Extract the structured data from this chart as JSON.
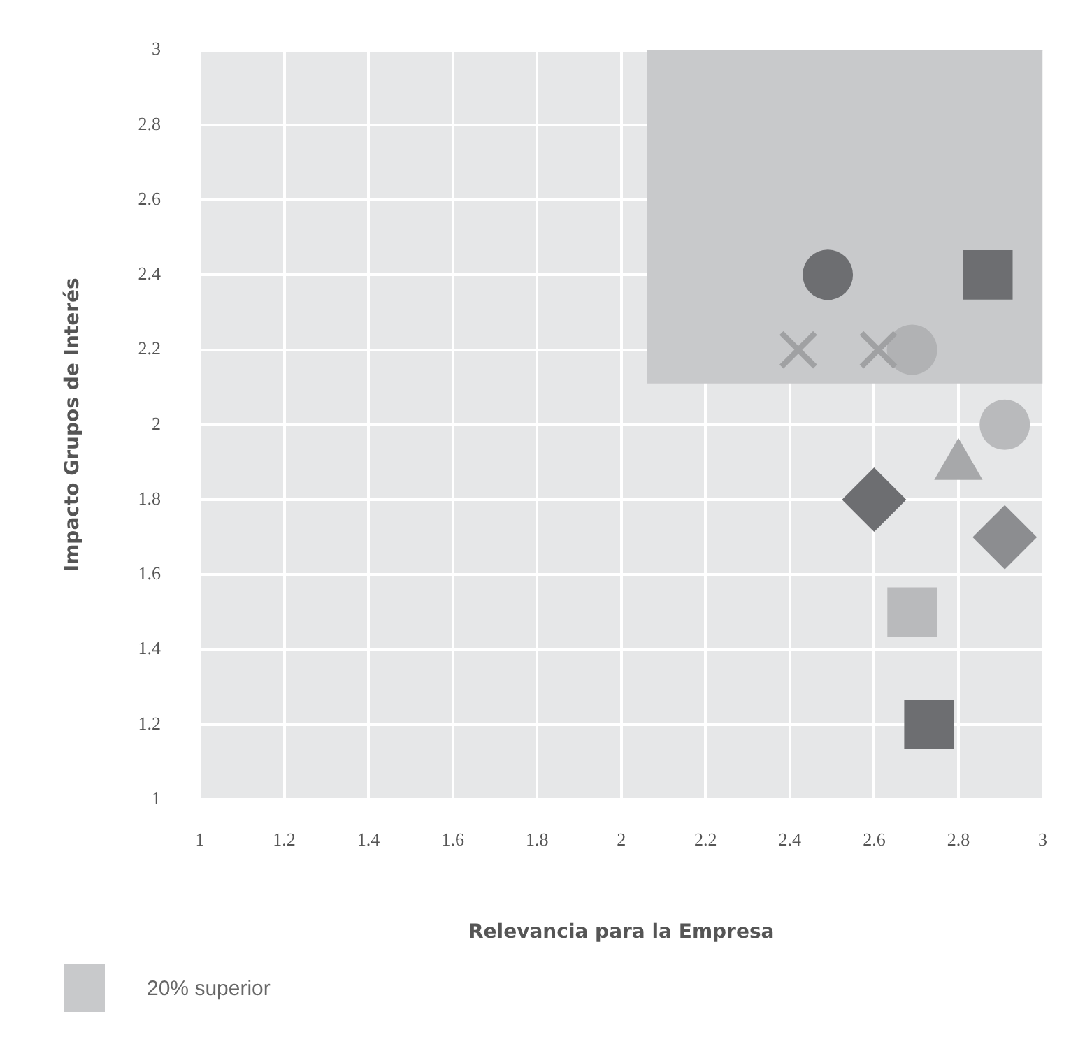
{
  "chart_data": {
    "type": "scatter",
    "xlabel": "Relevancia para la Empresa",
    "ylabel": "Impacto Grupos de Interés",
    "xlim": [
      1,
      3
    ],
    "xticks": [
      1,
      1.2,
      1.4,
      1.6,
      1.8,
      2,
      2.2,
      2.4,
      2.6,
      2.8,
      3
    ],
    "ylim": [
      1,
      3
    ],
    "yticks": [
      1,
      1.2,
      1.4,
      1.6,
      1.8,
      2,
      2.2,
      2.4,
      2.6,
      2.8,
      3
    ],
    "grid": true,
    "legend": "bottom left",
    "series": [
      {
        "type": "line",
        "name": "20% superior",
        "x": [
          2.06,
          3
        ],
        "values": [
          3,
          3
        ],
        "lower": [
          2.11,
          2.11
        ],
        "upper": [
          3,
          3
        ],
        "color": "#c8c9cb",
        "marker": "none"
      },
      {
        "x": [
          2.49
        ],
        "values": [
          2.4
        ],
        "color": "#6d6e71",
        "marker": "circle"
      },
      {
        "x": [
          2.87
        ],
        "values": [
          2.4
        ],
        "color": "#6d6e71",
        "marker": "square"
      },
      {
        "x": [
          2.42
        ],
        "values": [
          2.2
        ],
        "color": "#a0a1a3",
        "marker": "cross"
      },
      {
        "x": [
          2.61
        ],
        "values": [
          2.2
        ],
        "color": "#a0a1a3",
        "marker": "cross"
      },
      {
        "x": [
          2.69
        ],
        "values": [
          2.2
        ],
        "color": "#b1b2b4",
        "marker": "circle"
      },
      {
        "x": [
          2.91
        ],
        "values": [
          2.0
        ],
        "color": "#b9babc",
        "marker": "circle"
      },
      {
        "x": [
          2.8
        ],
        "values": [
          1.89
        ],
        "color": "#a7a8aa",
        "marker": "triangle"
      },
      {
        "x": [
          2.6
        ],
        "values": [
          1.8
        ],
        "color": "#6d6e71",
        "marker": "diamond"
      },
      {
        "x": [
          2.91
        ],
        "values": [
          1.7
        ],
        "color": "#8c8d90",
        "marker": "diamond"
      },
      {
        "x": [
          2.69
        ],
        "values": [
          1.5
        ],
        "color": "#b9babc",
        "marker": "square"
      },
      {
        "x": [
          2.73
        ],
        "values": [
          1.2
        ],
        "color": "#6d6e71",
        "marker": "square"
      }
    ]
  }
}
